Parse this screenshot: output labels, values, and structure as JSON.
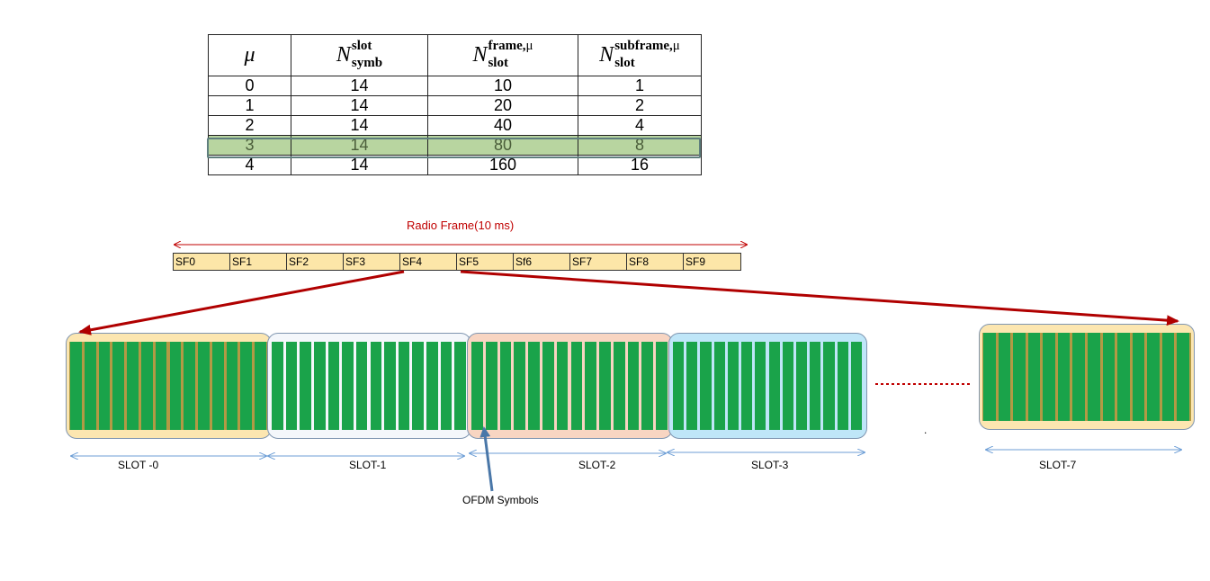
{
  "table": {
    "headers": [
      {
        "symbol": "μ",
        "sup": "",
        "sub": "",
        "sup_mu": ""
      },
      {
        "symbol": "N",
        "sup": "slot",
        "sub": "symb",
        "sup_mu": ""
      },
      {
        "symbol": "N",
        "sup": "frame,",
        "sub": "slot",
        "sup_mu": "μ"
      },
      {
        "symbol": "N",
        "sup": "subframe,",
        "sub": "slot",
        "sup_mu": "μ"
      }
    ],
    "rows": [
      [
        "0",
        "14",
        "10",
        "1"
      ],
      [
        "1",
        "14",
        "20",
        "2"
      ],
      [
        "2",
        "14",
        "40",
        "4"
      ],
      [
        "3",
        "14",
        "80",
        "8"
      ],
      [
        "4",
        "14",
        "160",
        "16"
      ]
    ],
    "highlighted_row": 3,
    "highlight_color": "#b8d5a0"
  },
  "radio_frame": {
    "label": "Radio Frame(10 ms)",
    "label_color": "#c00000",
    "subframes": [
      "SF0",
      "SF1",
      "SF2",
      "SF3",
      "SF4",
      "SF5",
      "Sf6",
      "SF7",
      "SF8",
      "SF9"
    ],
    "subframe_fill": "#fce6a8"
  },
  "slots": [
    {
      "label": "SLOT -0",
      "color": "#fce6b0"
    },
    {
      "label": "SLOT-1",
      "color": "#f4f7fb"
    },
    {
      "label": "SLOT-2",
      "color": "#f8d5c2"
    },
    {
      "label": "SLOT-3",
      "color": "#bfe6f8"
    },
    {
      "label": "SLOT-7",
      "color": "#fce6b0"
    }
  ],
  "ofdm_label": "OFDM Symbols",
  "separator_dot": ".",
  "colors": {
    "symbol_green": "#1aa34a",
    "symbol_gap_tan": "#b29a45",
    "arrow_red": "#b00000",
    "arrow_blue": "#6d9ed6",
    "pointer_blue": "#4a77a8"
  }
}
